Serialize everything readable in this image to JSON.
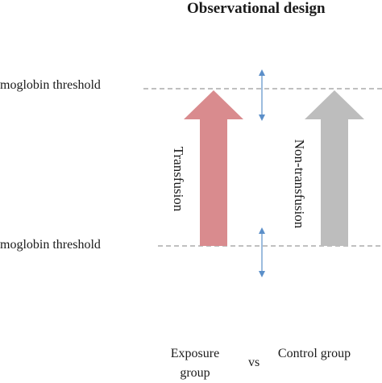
{
  "title": "Observational design",
  "thresholds": {
    "top_label": "moglobin threshold",
    "bottom_label": "moglobin threshold"
  },
  "arrows": [
    {
      "label": "Transfusion",
      "color": "#d98b8e"
    },
    {
      "label": "Non-transfusion",
      "color": "#bdbdbd"
    }
  ],
  "groups": {
    "exposure": "Exposure group",
    "vs": "vs",
    "control": "Control group"
  },
  "colors": {
    "threshold_line": "#808080",
    "double_arrow": "#5b8fc9"
  },
  "icons": [
    "double-headed-arrow-icon"
  ]
}
